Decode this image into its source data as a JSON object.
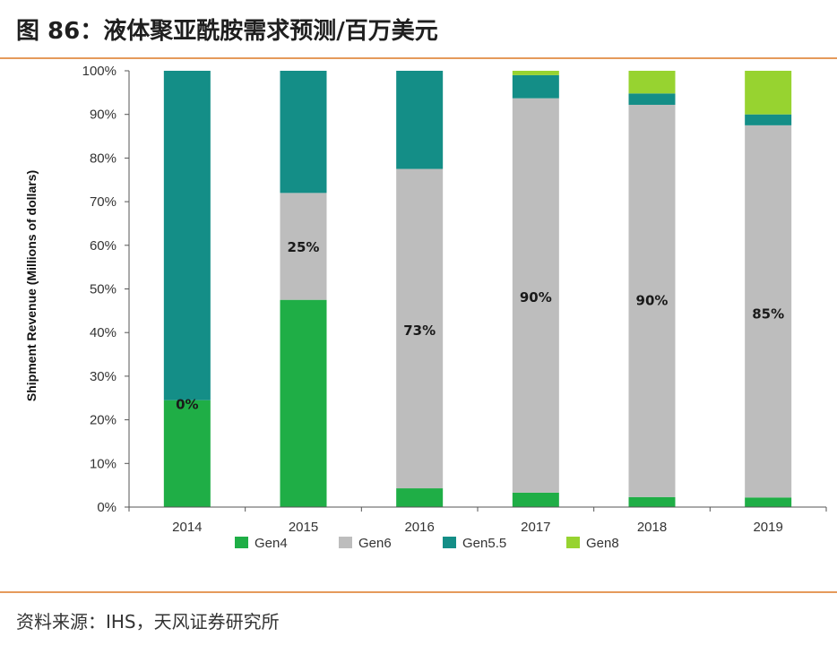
{
  "header": {
    "title": "图 86：液体聚亚酰胺需求预测/百万美元"
  },
  "footer": {
    "source": "资料来源：IHS，天风证券研究所"
  },
  "colors": {
    "rule": "#e59a5b",
    "Gen4": "#1fae46",
    "Gen6": "#bdbdbd",
    "Gen5.5": "#148e87",
    "Gen8": "#97d330"
  },
  "chart_data": {
    "type": "bar",
    "stacked": true,
    "percent": true,
    "categories": [
      "2014",
      "2015",
      "2016",
      "2017",
      "2018",
      "2019"
    ],
    "series": [
      {
        "name": "Gen4",
        "values": [
          24.5,
          47.5,
          4.3,
          3.3,
          2.3,
          2.2
        ]
      },
      {
        "name": "Gen6",
        "values": [
          0,
          24.5,
          73.2,
          90.4,
          89.9,
          85.3
        ]
      },
      {
        "name": "Gen5.5",
        "values": [
          75.5,
          28.0,
          22.5,
          5.3,
          2.6,
          2.5
        ]
      },
      {
        "name": "Gen8",
        "values": [
          0,
          0,
          0,
          1.0,
          5.2,
          10.0
        ]
      }
    ],
    "data_labels": [
      "0%",
      "25%",
      "73%",
      "90%",
      "90%",
      "85%"
    ],
    "data_label_positions": [
      23.5,
      59.5,
      40.5,
      48.0,
      47.3,
      44.2
    ],
    "yticks": [
      "0%",
      "10%",
      "20%",
      "30%",
      "40%",
      "50%",
      "60%",
      "70%",
      "80%",
      "90%",
      "100%"
    ],
    "ylabel": "Shipment Revenue (Millions of dollars)",
    "xlabel": "",
    "ylim": [
      0,
      100
    ],
    "grid": false,
    "legend_position": "bottom"
  }
}
